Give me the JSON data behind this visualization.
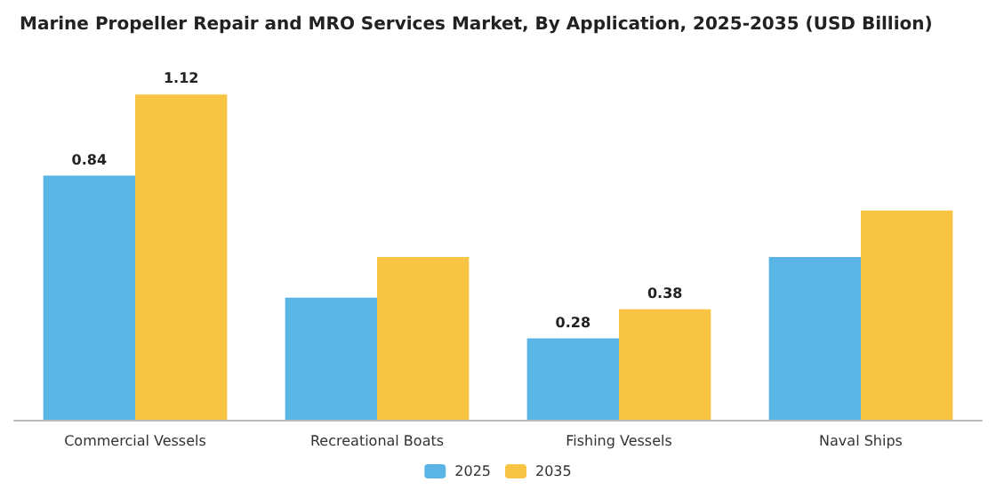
{
  "chart_data": {
    "type": "bar",
    "title": "Marine Propeller Repair and MRO Services Market, By Application, 2025-2035 (USD Billion)",
    "categories": [
      "Commercial Vessels",
      "Recreational Boats",
      "Fishing Vessels",
      "Naval Ships"
    ],
    "series": [
      {
        "name": "2025",
        "color": "#5bb4e6",
        "values": [
          0.84,
          0.42,
          0.28,
          0.56
        ],
        "value_labels": [
          "0.84",
          null,
          "0.28",
          null
        ]
      },
      {
        "name": "2035",
        "color": "#f8c444",
        "values": [
          1.12,
          0.56,
          0.38,
          0.72
        ],
        "value_labels": [
          "1.12",
          null,
          "0.38",
          null
        ]
      }
    ],
    "legend": "bottom"
  }
}
